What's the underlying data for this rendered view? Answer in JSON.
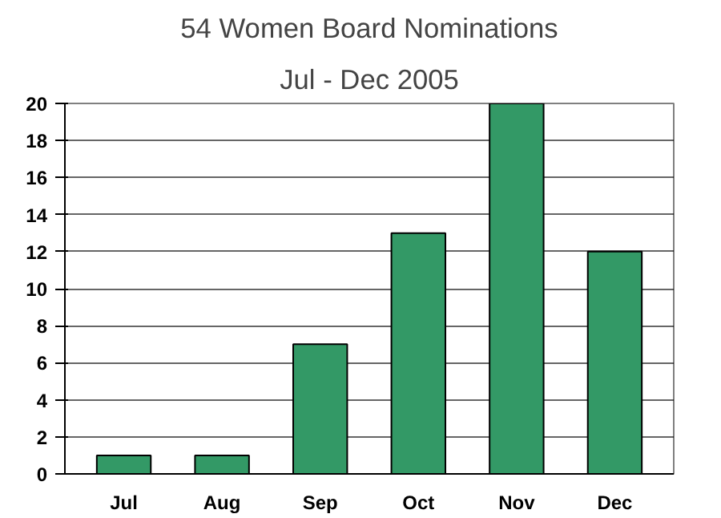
{
  "chart_data": {
    "type": "bar",
    "title": "54 Women Board Nominations",
    "subtitle": "Jul - Dec 2005",
    "categories": [
      "Jul",
      "Aug",
      "Sep",
      "Oct",
      "Nov",
      "Dec"
    ],
    "values": [
      1,
      1,
      7,
      13,
      20,
      12
    ],
    "color": "#339966",
    "ylim": [
      0,
      20
    ],
    "yticks": [
      0,
      2,
      4,
      6,
      8,
      10,
      12,
      14,
      16,
      18,
      20
    ],
    "grid": "y"
  }
}
